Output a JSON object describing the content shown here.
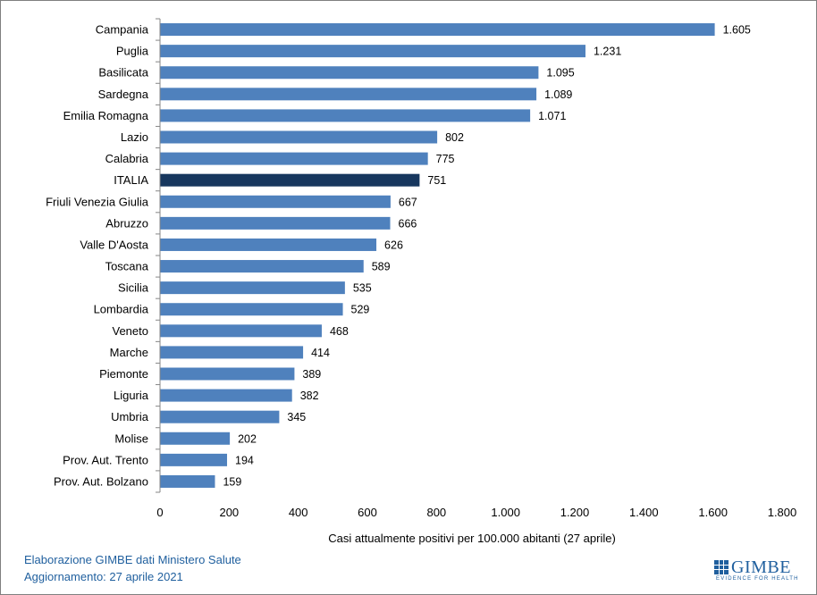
{
  "chart_data": {
    "type": "bar",
    "orientation": "horizontal",
    "categories": [
      "Campania",
      "Puglia",
      "Basilicata",
      "Sardegna",
      "Emilia Romagna",
      "Lazio",
      "Calabria",
      "ITALIA",
      "Friuli Venezia Giulia",
      "Abruzzo",
      "Valle D'Aosta",
      "Toscana",
      "Sicilia",
      "Lombardia",
      "Veneto",
      "Marche",
      "Piemonte",
      "Liguria",
      "Umbria",
      "Molise",
      "Prov. Aut. Trento",
      "Prov. Aut. Bolzano"
    ],
    "values": [
      1605,
      1231,
      1095,
      1089,
      1071,
      802,
      775,
      751,
      667,
      666,
      626,
      589,
      535,
      529,
      468,
      414,
      389,
      382,
      345,
      202,
      194,
      159
    ],
    "value_labels": [
      "1.605",
      "1.231",
      "1.095",
      "1.089",
      "1.071",
      "802",
      "775",
      "751",
      "667",
      "666",
      "626",
      "589",
      "535",
      "529",
      "468",
      "414",
      "389",
      "382",
      "345",
      "202",
      "194",
      "159"
    ],
    "highlight_category": "ITALIA",
    "xlim": [
      0,
      1800
    ],
    "xticks": [
      0,
      200,
      400,
      600,
      800,
      1000,
      1200,
      1400,
      1600,
      1800
    ],
    "xtick_labels": [
      "0",
      "200",
      "400",
      "600",
      "800",
      "1.000",
      "1.200",
      "1.400",
      "1.600",
      "1.800"
    ],
    "xlabel": "Casi attualmente positivi per 100.000 abitanti (27 aprile)",
    "ylabel": "",
    "colors": {
      "bar": "#4f81bd",
      "highlight": "#17375e",
      "axis": "#868686"
    }
  },
  "footer": {
    "line1": "Elaborazione GIMBE dati Ministero Salute",
    "line2": "Aggiornamento: 27 aprile 2021"
  },
  "logo": {
    "name": "GIMBE",
    "tagline": "EVIDENCE FOR HEALTH"
  }
}
